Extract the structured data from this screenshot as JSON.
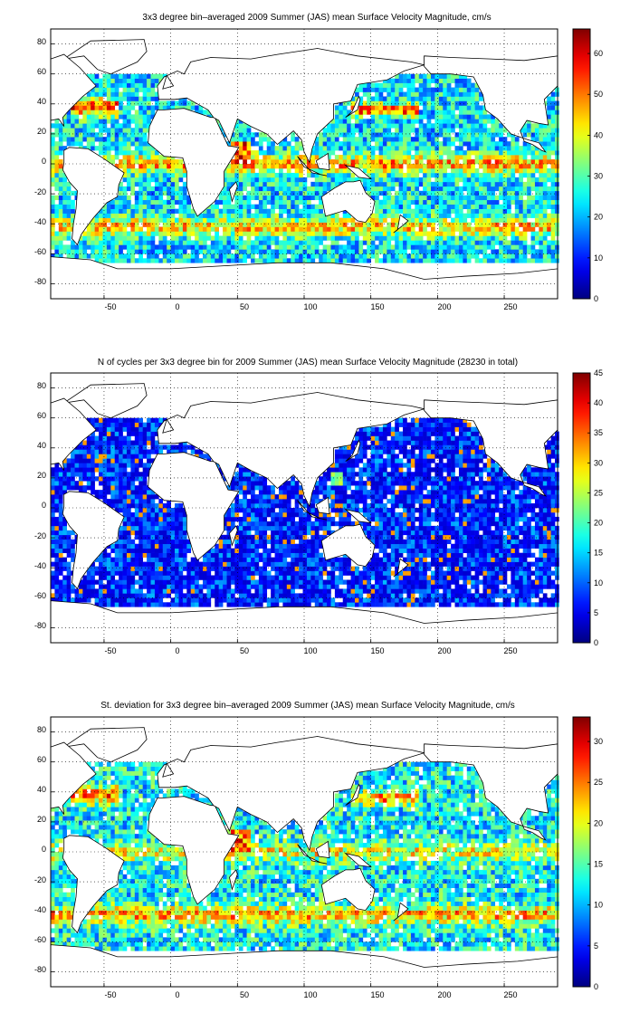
{
  "figure": {
    "panels": [
      {
        "title": "3x3 degree bin–averaged 2009 Summer (JAS) mean Surface Velocity Magnitude, cm/s",
        "colorbar_ticks": [
          "0",
          "10",
          "20",
          "30",
          "40",
          "50",
          "60"
        ]
      },
      {
        "title": "N of cycles per 3x3 degree bin for 2009 Summer (JAS) mean Surface Velocity Magnitude (28230 in total)",
        "colorbar_ticks": [
          "0",
          "5",
          "10",
          "15",
          "20",
          "25",
          "30",
          "35",
          "40",
          "45"
        ]
      },
      {
        "title": "St. deviation for 3x3 degree bin–averaged 2009 Summer (JAS) mean Surface Velocity Magnitude, cm/s",
        "colorbar_ticks": [
          "0",
          "5",
          "10",
          "15",
          "20",
          "25",
          "30"
        ]
      }
    ],
    "x_ticks": [
      "-50",
      "0",
      "50",
      "100",
      "150",
      "200",
      "250"
    ],
    "y_ticks": [
      "80",
      "60",
      "40",
      "20",
      "0",
      "-20",
      "-40",
      "-60",
      "-80"
    ]
  },
  "chart_data": [
    {
      "type": "heatmap",
      "title": "3x3 degree bin–averaged 2009 Summer (JAS) mean Surface Velocity Magnitude, cm/s",
      "xlim": [
        -90,
        290
      ],
      "ylim": [
        -90,
        90
      ],
      "x_ticks": [
        -50,
        0,
        50,
        100,
        150,
        200,
        250
      ],
      "y_ticks": [
        -80,
        -60,
        -40,
        -20,
        0,
        20,
        40,
        60,
        80
      ],
      "grid": true,
      "colormap": "jet",
      "colorbar": {
        "min": 0,
        "max": 66,
        "ticks": [
          0,
          10,
          20,
          30,
          40,
          50,
          60
        ]
      },
      "bin_size_deg": 3
    },
    {
      "type": "heatmap",
      "title": "N of cycles per 3x3 degree bin for 2009 Summer (JAS) mean Surface Velocity Magnitude (28230 in total)",
      "xlim": [
        -90,
        290
      ],
      "ylim": [
        -90,
        90
      ],
      "x_ticks": [
        -50,
        0,
        50,
        100,
        150,
        200,
        250
      ],
      "y_ticks": [
        -80,
        -60,
        -40,
        -20,
        0,
        20,
        40,
        60,
        80
      ],
      "grid": true,
      "colormap": "jet",
      "colorbar": {
        "min": 0,
        "max": 45,
        "ticks": [
          0,
          5,
          10,
          15,
          20,
          25,
          30,
          35,
          40,
          45
        ]
      },
      "bin_size_deg": 3,
      "total": 28230
    },
    {
      "type": "heatmap",
      "title": "St. deviation for 3x3 degree bin–averaged 2009 Summer (JAS) mean Surface Velocity Magnitude, cm/s",
      "xlim": [
        -90,
        290
      ],
      "ylim": [
        -90,
        90
      ],
      "x_ticks": [
        -50,
        0,
        50,
        100,
        150,
        200,
        250
      ],
      "y_ticks": [
        -80,
        -60,
        -40,
        -20,
        0,
        20,
        40,
        60,
        80
      ],
      "grid": true,
      "colormap": "jet",
      "colorbar": {
        "min": 0,
        "max": 33,
        "ticks": [
          0,
          5,
          10,
          15,
          20,
          25,
          30
        ]
      },
      "bin_size_deg": 3
    }
  ]
}
